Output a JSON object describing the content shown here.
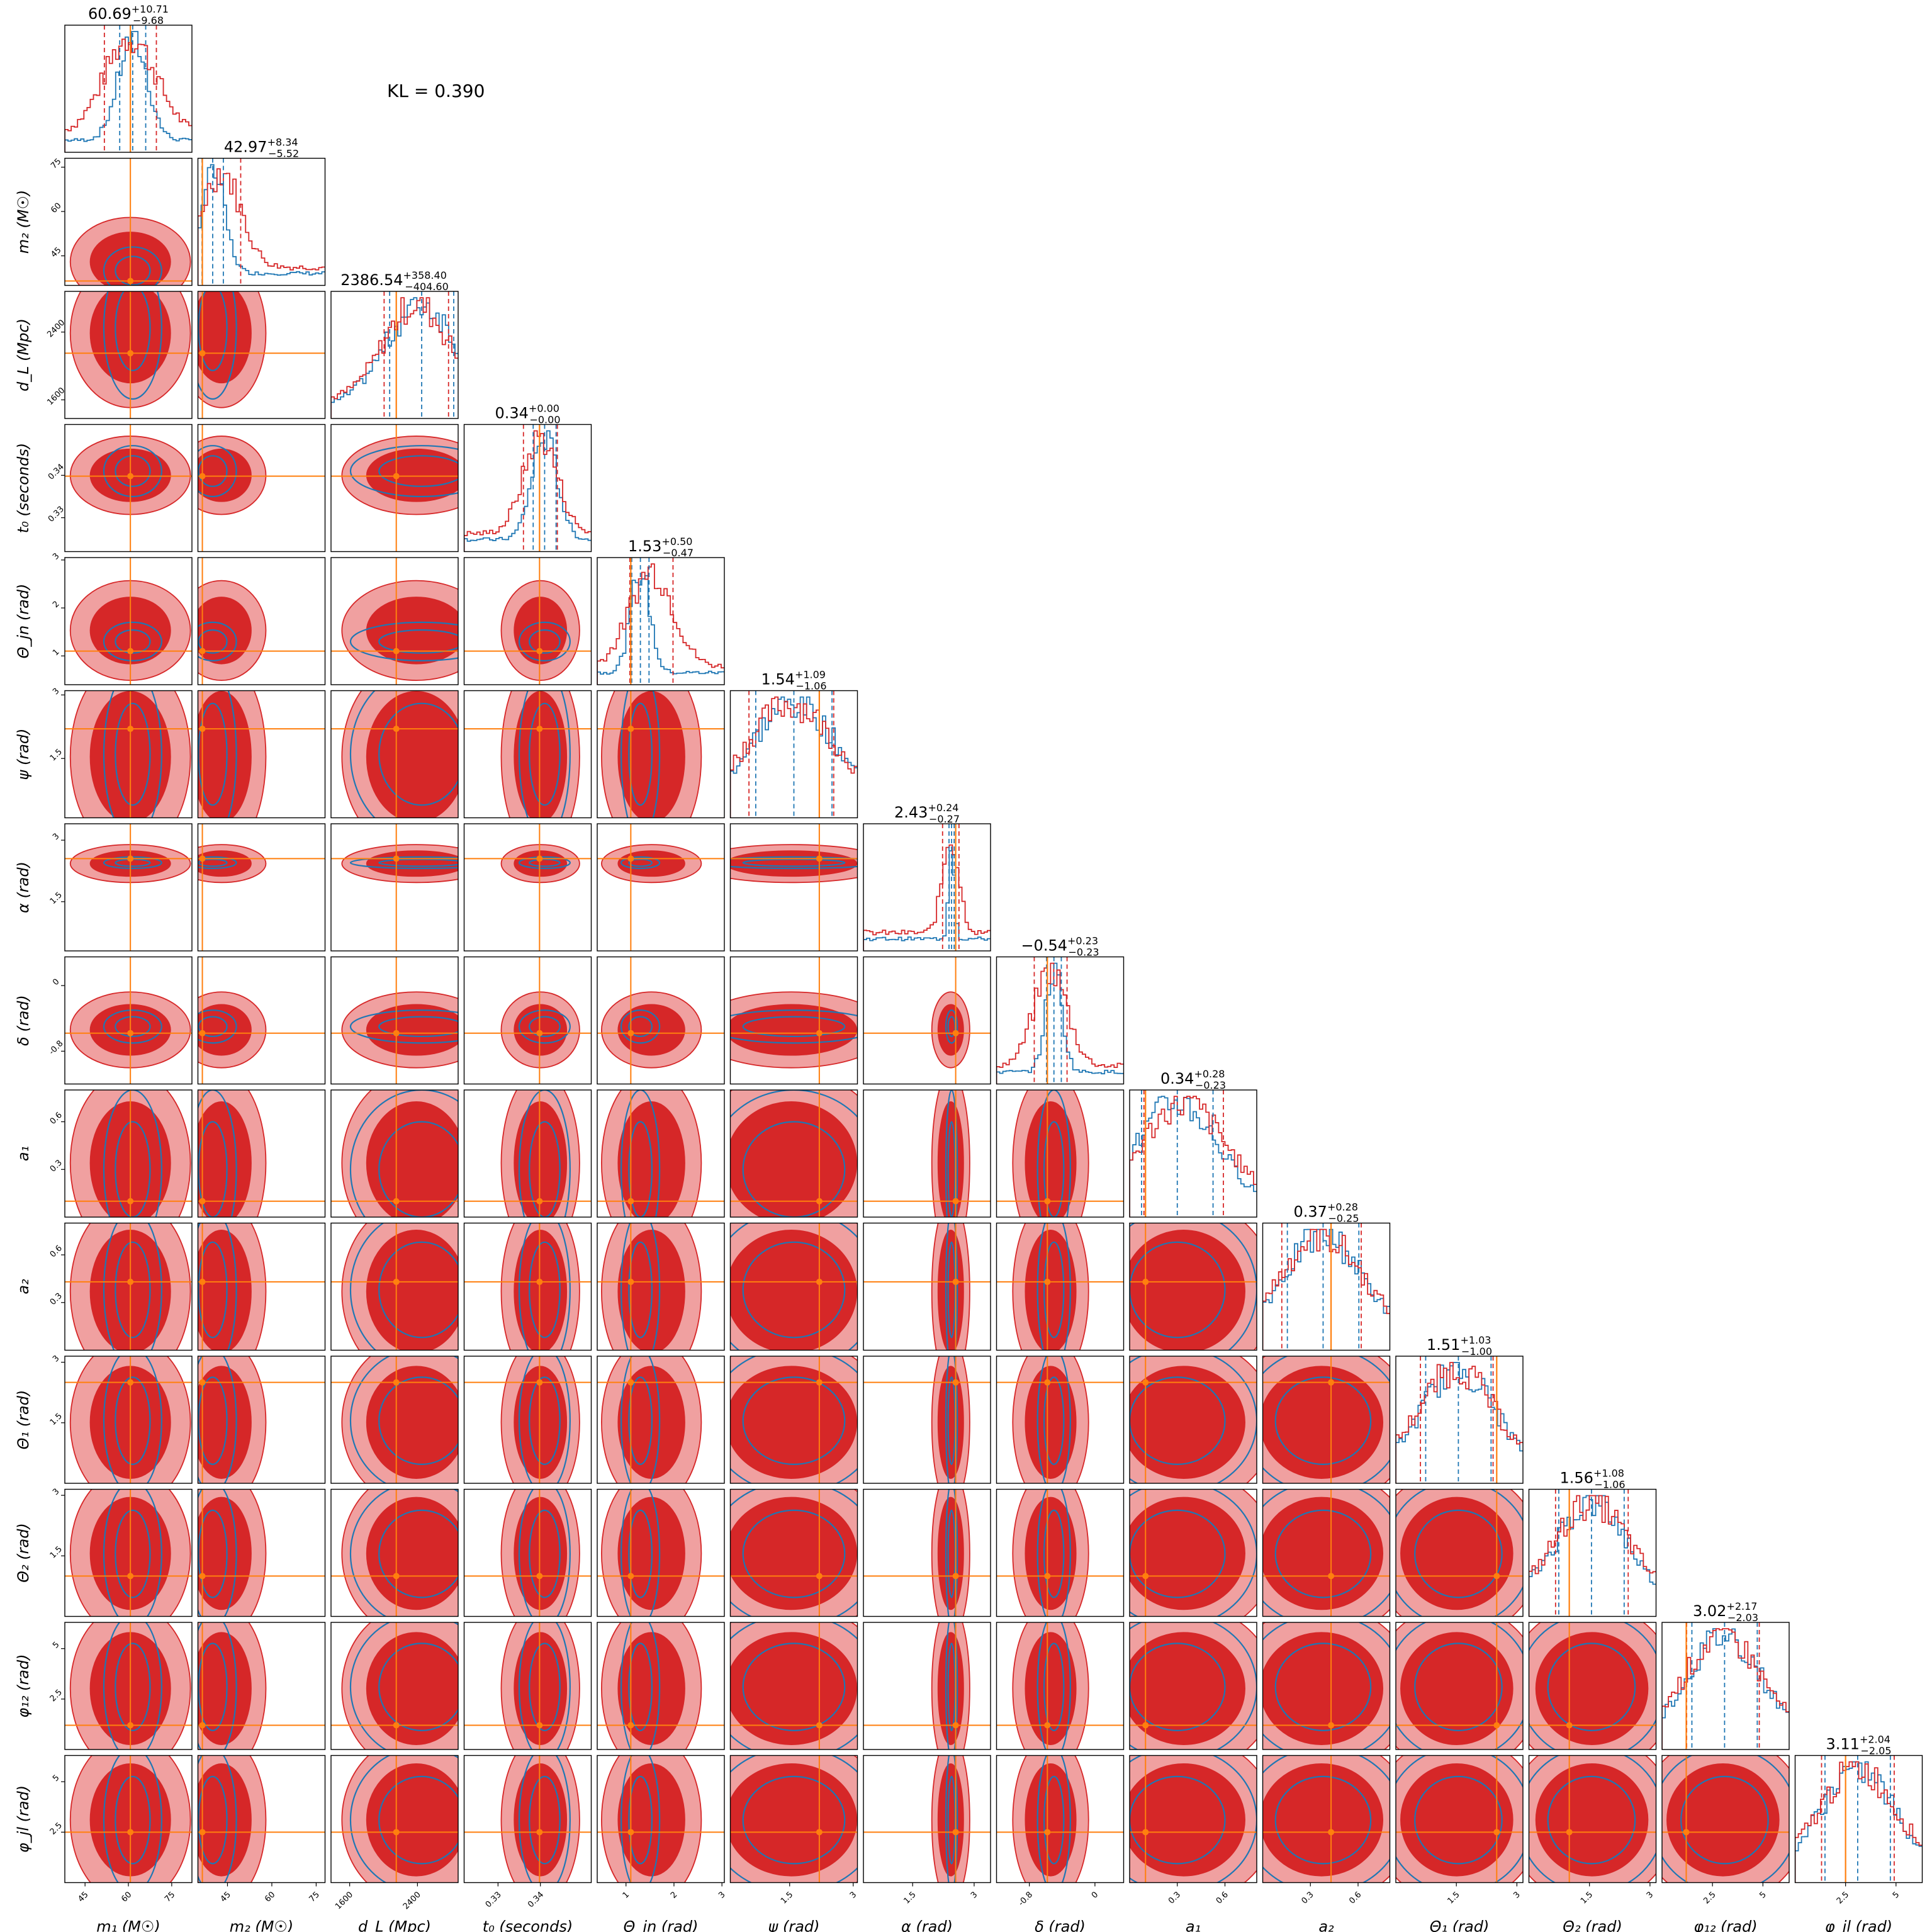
{
  "kl_text": "KL = 0.390",
  "colors": {
    "red": "#d62728",
    "red_light": "#f0a0a0",
    "blue": "#1f77b4",
    "orange": "#ff7f0e"
  },
  "chart_data": {
    "type": "corner",
    "series": [
      {
        "color": "#d62728"
      },
      {
        "color": "#1f77b4"
      }
    ],
    "parameters": [
      {
        "key": "m1",
        "label": "m₁ (M☉)",
        "ylabel": "",
        "range": [
          38,
          82
        ],
        "ticks": [
          45,
          60,
          75
        ],
        "truth": 60.69,
        "median": 60.69,
        "plus": "+10.71",
        "minus": "−9.68",
        "title_value": "60.69",
        "blue_mean": 61.5,
        "blue_sd": 5.0,
        "red_sd": 9.0
      },
      {
        "key": "m2",
        "label": "m₂ (M☉)",
        "ylabel": "m₂ (M☉)",
        "range": [
          35,
          78
        ],
        "ticks": [
          45,
          60,
          75
        ],
        "truth": 36.5,
        "median": 42.97,
        "plus": "+8.34",
        "minus": "−5.52",
        "title_value": "42.97",
        "blue_mean": 40.0,
        "blue_sd": 4.0,
        "red_sd": 6.5
      },
      {
        "key": "dL",
        "label": "d_L (Mpc)",
        "ylabel": "d_L (Mpc)",
        "range": [
          1380,
          2880
        ],
        "ticks": [
          1600,
          2400
        ],
        "truth": 2150,
        "median": 2386.54,
        "plus": "+358.40",
        "minus": "−404.60",
        "title_value": "2386.54",
        "blue_mean": 2450,
        "blue_sd": 420,
        "red_sd": 380
      },
      {
        "key": "t0",
        "label": "t₀ (seconds)",
        "ylabel": "t₀ (seconds)",
        "range": [
          0.322,
          0.352
        ],
        "ticks": [
          0.33,
          0.34
        ],
        "truth": 0.3398,
        "median": 0.34,
        "plus": "+0.00",
        "minus": "−0.00",
        "title_value": "0.34",
        "blue_mean": 0.341,
        "blue_sd": 0.003,
        "red_sd": 0.004
      },
      {
        "key": "theta_jn",
        "label": "Θ_jn (rad)",
        "ylabel": "Θ_jn (rad)",
        "range": [
          0.4,
          3.05
        ],
        "ticks": [
          1,
          2,
          3
        ],
        "truth": 1.1,
        "median": 1.53,
        "plus": "+0.50",
        "minus": "−0.47",
        "title_value": "1.53",
        "blue_mean": 1.3,
        "blue_sd": 0.2,
        "red_sd": 0.45
      },
      {
        "key": "psi",
        "label": "ψ (rad)",
        "ylabel": "ψ (rad)",
        "range": [
          0.1,
          3.1
        ],
        "ticks": [
          1.5,
          3.0
        ],
        "truth": 2.2,
        "median": 1.54,
        "plus": "+1.09",
        "minus": "−1.06",
        "title_value": "1.54",
        "blue_mean": 1.6,
        "blue_sd": 1.0,
        "red_sd": 1.0
      },
      {
        "key": "alpha",
        "label": "α (rad)",
        "ylabel": "α (rad)",
        "range": [
          0.3,
          3.4
        ],
        "ticks": [
          1.5,
          3.0
        ],
        "truth": 2.55,
        "median": 2.43,
        "plus": "+0.24",
        "minus": "−0.27",
        "title_value": "2.43",
        "blue_mean": 2.45,
        "blue_sd": 0.07,
        "red_sd": 0.2
      },
      {
        "key": "delta",
        "label": "δ (rad)",
        "ylabel": "δ (rad)",
        "range": [
          -1.2,
          0.35
        ],
        "ticks": [
          -0.8,
          0.0
        ],
        "truth": -0.58,
        "median": -0.54,
        "plus": "+0.23",
        "minus": "−0.23",
        "title_value": "−0.54",
        "blue_mean": -0.5,
        "blue_sd": 0.1,
        "red_sd": 0.2
      },
      {
        "key": "a1",
        "label": "a₁",
        "ylabel": "a₁",
        "range": [
          0.0,
          0.8
        ],
        "ticks": [
          0.3,
          0.6
        ],
        "truth": 0.1,
        "median": 0.34,
        "plus": "+0.28",
        "minus": "−0.23",
        "title_value": "0.34",
        "blue_mean": 0.3,
        "blue_sd": 0.25,
        "red_sd": 0.25
      },
      {
        "key": "a2",
        "label": "a₂",
        "ylabel": "a₂",
        "range": [
          0.0,
          0.8
        ],
        "ticks": [
          0.3,
          0.6
        ],
        "truth": 0.43,
        "median": 0.37,
        "plus": "+0.28",
        "minus": "−0.25",
        "title_value": "0.37",
        "blue_mean": 0.38,
        "blue_sd": 0.25,
        "red_sd": 0.25
      },
      {
        "key": "theta1",
        "label": "Θ₁ (rad)",
        "ylabel": "Θ₁ (rad)",
        "range": [
          0.0,
          3.15
        ],
        "ticks": [
          1.5,
          3.0
        ],
        "truth": 2.5,
        "median": 1.51,
        "plus": "+1.03",
        "minus": "−1.00",
        "title_value": "1.51",
        "blue_mean": 1.55,
        "blue_sd": 0.9,
        "red_sd": 0.9
      },
      {
        "key": "theta2",
        "label": "Θ₂ (rad)",
        "ylabel": "Θ₂ (rad)",
        "range": [
          0.0,
          3.15
        ],
        "ticks": [
          1.5,
          3.0
        ],
        "truth": 1.0,
        "median": 1.56,
        "plus": "+1.08",
        "minus": "−1.06",
        "title_value": "1.56",
        "blue_mean": 1.55,
        "blue_sd": 0.9,
        "red_sd": 0.9
      },
      {
        "key": "phi12",
        "label": "φ₁₂ (rad)",
        "ylabel": "φ₁₂ (rad)",
        "range": [
          0.0,
          6.3
        ],
        "ticks": [
          2.5,
          5.0
        ],
        "truth": 1.2,
        "median": 3.02,
        "plus": "+2.17",
        "minus": "−2.03",
        "title_value": "3.02",
        "blue_mean": 3.1,
        "blue_sd": 1.8,
        "red_sd": 1.8
      },
      {
        "key": "phijl",
        "label": "φ_jl (rad)",
        "ylabel": "φ_jl (rad)",
        "range": [
          0.0,
          6.3
        ],
        "ticks": [
          2.5,
          5.0
        ],
        "truth": 2.5,
        "median": 3.11,
        "plus": "+2.04",
        "minus": "−2.05",
        "title_value": "3.11",
        "blue_mean": 3.1,
        "blue_sd": 1.8,
        "red_sd": 1.8
      }
    ]
  }
}
